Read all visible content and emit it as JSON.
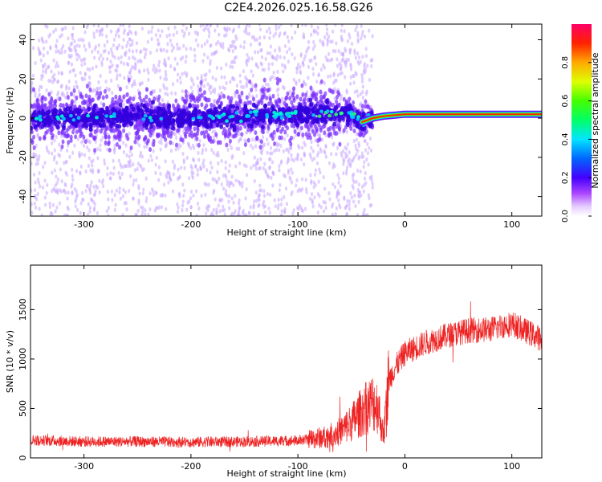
{
  "title": "C2E4.2026.025.16.58.G26",
  "colors": {
    "snr_line": "#ee2222",
    "frame": "#000000",
    "scatter_light": "#c9a8ff",
    "scatter_mid": "#7a2cff",
    "scatter_dark": "#3300dd"
  },
  "chart_data": [
    {
      "type": "heatmap",
      "xlabel": "Height of straight line (km)",
      "ylabel": "Frequency (Hz)",
      "xlim": [
        -350,
        128
      ],
      "ylim": [
        -50,
        48
      ],
      "xticks": [
        -300,
        -200,
        -100,
        0,
        100
      ],
      "xtick_labels": [
        "-300",
        "-200",
        "-100",
        "0",
        "100"
      ],
      "yticks": [
        -40,
        -20,
        0,
        20,
        40
      ],
      "ytick_labels": [
        "-40",
        "-20",
        "0",
        "20",
        "40"
      ],
      "colorbar": {
        "label": "Normalized spectral amplitude",
        "range": [
          0,
          1
        ],
        "ticks": [
          0.0,
          0.2,
          0.4,
          0.6,
          0.8
        ],
        "tick_labels": [
          "0.0",
          "0.2",
          "0.4",
          "0.6",
          "0.8"
        ],
        "colors": [
          "#ffffff",
          "#cc66ff",
          "#7700ff",
          "#0000ff",
          "#00ffff",
          "#00ff00",
          "#ffff00",
          "#ff9900",
          "#ff0000",
          "#ff0066"
        ]
      },
      "ridge": {
        "description": "Dominant frequency ridge",
        "x": [
          -350,
          -300,
          -250,
          -200,
          -150,
          -100,
          -75,
          -50,
          -40,
          -30,
          -20,
          0,
          50,
          100,
          128
        ],
        "y": [
          0,
          0,
          1,
          0,
          1,
          2,
          3,
          2,
          -2,
          0,
          1,
          2,
          2,
          2,
          2
        ]
      },
      "grid": false
    },
    {
      "type": "line",
      "xlabel": "Height of straight line (km)",
      "ylabel": "SNR (10 * v/v)",
      "xlim": [
        -350,
        128
      ],
      "ylim": [
        0,
        1950
      ],
      "xticks": [
        -300,
        -200,
        -100,
        0,
        100
      ],
      "xtick_labels": [
        "-300",
        "-200",
        "-100",
        "0",
        "100"
      ],
      "yticks": [
        0,
        500,
        1000,
        1500
      ],
      "ytick_labels": [
        "0",
        "500",
        "1000",
        "1500"
      ],
      "series": [
        {
          "x": [
            -350,
            -300,
            -250,
            -200,
            -150,
            -100,
            -75,
            -60,
            -50,
            -40,
            -30,
            -25,
            -20,
            -15,
            -10,
            0,
            20,
            40,
            60,
            80,
            100,
            110,
            128
          ],
          "y": [
            180,
            165,
            165,
            160,
            165,
            175,
            210,
            270,
            360,
            470,
            560,
            520,
            220,
            780,
            900,
            1060,
            1170,
            1240,
            1290,
            1300,
            1360,
            1300,
            1200
          ]
        }
      ],
      "grid": false
    }
  ]
}
